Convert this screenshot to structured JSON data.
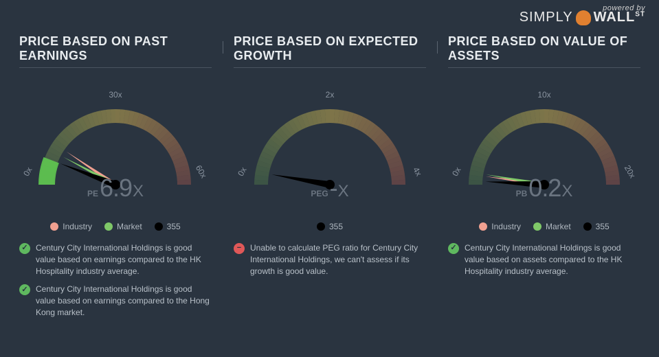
{
  "logo": {
    "powered": "powered by",
    "simply": "SIMPLY",
    "wall": "WALL",
    "st": "ST"
  },
  "colors": {
    "background": "#2a3440",
    "text": "#c8ccd0",
    "industry": "#f0a090",
    "market": "#7fc868",
    "stock": "#000000",
    "gauge_green": "#5a8a50",
    "gauge_yellow": "#c0a850",
    "gauge_red": "#b05a50",
    "tick": "#8a94a0"
  },
  "panels": [
    {
      "title": "PRICE BASED ON PAST EARNINGS",
      "gauge": {
        "ticks": [
          "0x",
          "30x",
          "60x"
        ],
        "prefix": "PE",
        "value": "6.9",
        "suffix": "X",
        "needles": {
          "industry": {
            "angle": -56,
            "color": "#f0a090",
            "show": true
          },
          "market": {
            "angle": -62,
            "color": "#7fc868",
            "show": true
          },
          "stock": {
            "angle": -69,
            "color": "#000000",
            "show": true,
            "wedge": true,
            "wedge_color": "#5fc850"
          }
        }
      },
      "legend": [
        {
          "label": "Industry",
          "color": "#f0a090"
        },
        {
          "label": "Market",
          "color": "#7fc868"
        },
        {
          "label": "355",
          "color": "#000000"
        }
      ],
      "notes": [
        {
          "icon": "good",
          "text": "Century City International Holdings is good value based on earnings compared to the HK Hospitality industry average."
        },
        {
          "icon": "good",
          "text": "Century City International Holdings is good value based on earnings compared to the Hong Kong market."
        }
      ]
    },
    {
      "title": "PRICE BASED ON EXPECTED GROWTH",
      "gauge": {
        "ticks": [
          "0x",
          "2x",
          "4x"
        ],
        "prefix": "PEG",
        "value": "-",
        "suffix": "X",
        "needles": {
          "industry": {
            "show": false
          },
          "market": {
            "show": false
          },
          "stock": {
            "angle": -80,
            "color": "#000000",
            "show": true,
            "wedge": false
          }
        }
      },
      "legend": [
        {
          "label": "355",
          "color": "#000000"
        }
      ],
      "notes": [
        {
          "icon": "bad",
          "text": "Unable to calculate PEG ratio for Century City International Holdings, we can't assess if its growth is good value."
        }
      ]
    },
    {
      "title": "PRICE BASED ON VALUE OF ASSETS",
      "gauge": {
        "ticks": [
          "0x",
          "10x",
          "20x"
        ],
        "prefix": "PB",
        "value": "0.2",
        "suffix": "X",
        "needles": {
          "industry": {
            "angle": -82,
            "color": "#f0a090",
            "show": true
          },
          "market": {
            "angle": -80,
            "color": "#7fc868",
            "show": true
          },
          "stock": {
            "angle": -87,
            "color": "#000000",
            "show": true,
            "wedge": false
          }
        }
      },
      "legend": [
        {
          "label": "Industry",
          "color": "#f0a090"
        },
        {
          "label": "Market",
          "color": "#7fc868"
        },
        {
          "label": "355",
          "color": "#000000"
        }
      ],
      "notes": [
        {
          "icon": "good",
          "text": "Century City International Holdings is good value based on assets compared to the HK Hospitality industry average."
        }
      ]
    }
  ]
}
